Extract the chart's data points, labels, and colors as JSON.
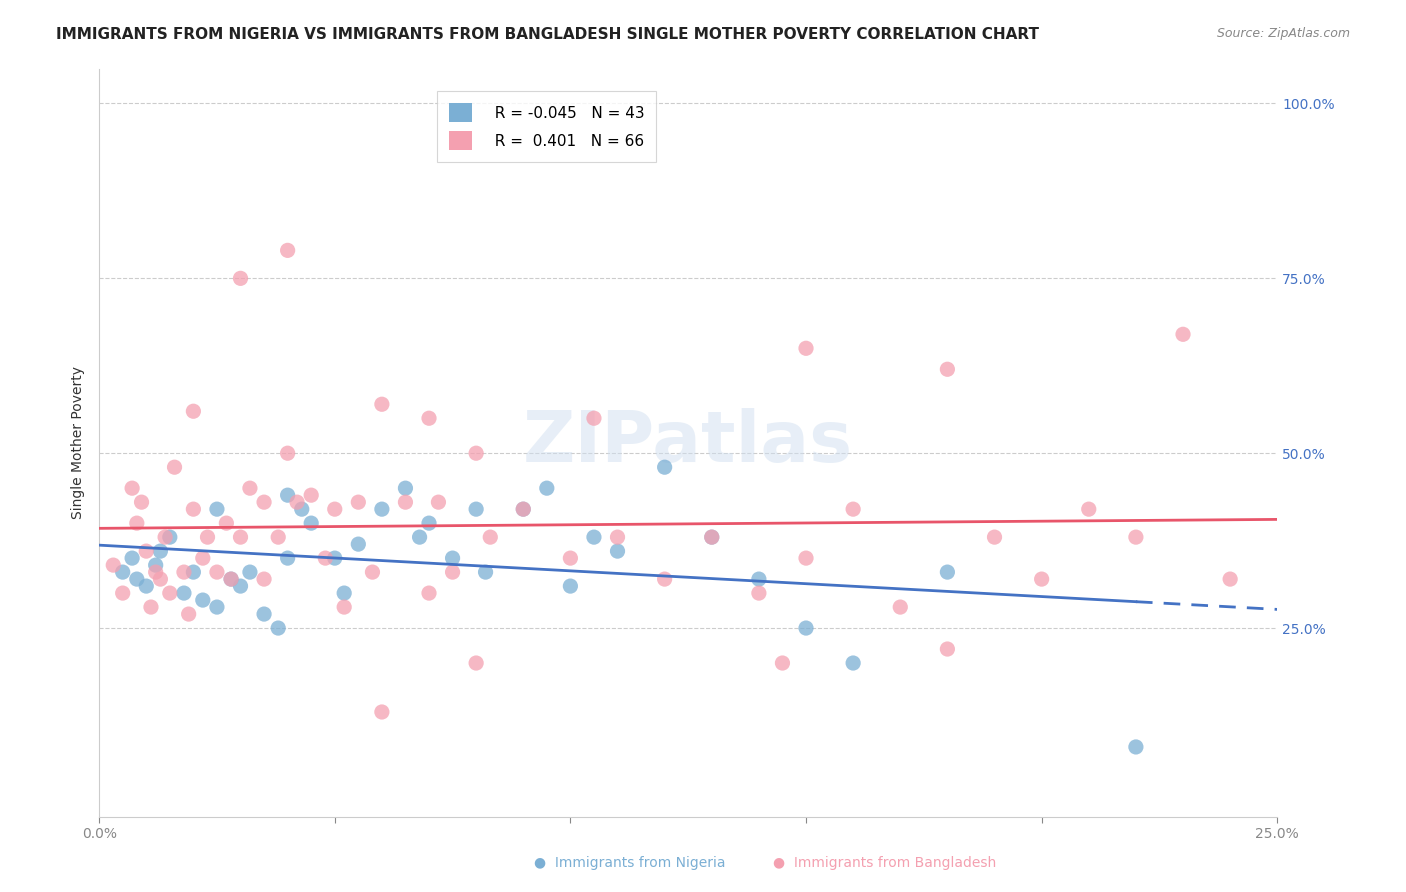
{
  "title": "IMMIGRANTS FROM NIGERIA VS IMMIGRANTS FROM BANGLADESH SINGLE MOTHER POVERTY CORRELATION CHART",
  "source": "Source: ZipAtlas.com",
  "ylabel": "Single Mother Poverty",
  "right_yticks": [
    "100.0%",
    "75.0%",
    "50.0%",
    "25.0%"
  ],
  "right_ytick_values": [
    1.0,
    0.75,
    0.5,
    0.25
  ],
  "xlim": [
    0.0,
    0.25
  ],
  "ylim": [
    -0.02,
    1.05
  ],
  "nigeria_R": -0.045,
  "nigeria_N": 43,
  "bangladesh_R": 0.401,
  "bangladesh_N": 66,
  "nigeria_color": "#7bafd4",
  "bangladesh_color": "#f4a0b0",
  "nigeria_line_color": "#4472c4",
  "bangladesh_line_color": "#e8556a",
  "nigeria_scatter_x": [
    0.005,
    0.007,
    0.008,
    0.01,
    0.012,
    0.013,
    0.015,
    0.018,
    0.02,
    0.022,
    0.025,
    0.025,
    0.028,
    0.03,
    0.032,
    0.035,
    0.038,
    0.04,
    0.04,
    0.043,
    0.045,
    0.05,
    0.052,
    0.055,
    0.06,
    0.065,
    0.068,
    0.07,
    0.075,
    0.08,
    0.082,
    0.09,
    0.095,
    0.1,
    0.105,
    0.11,
    0.12,
    0.13,
    0.14,
    0.15,
    0.16,
    0.18,
    0.22
  ],
  "nigeria_scatter_y": [
    0.33,
    0.35,
    0.32,
    0.31,
    0.34,
    0.36,
    0.38,
    0.3,
    0.33,
    0.29,
    0.42,
    0.28,
    0.32,
    0.31,
    0.33,
    0.27,
    0.25,
    0.44,
    0.35,
    0.42,
    0.4,
    0.35,
    0.3,
    0.37,
    0.42,
    0.45,
    0.38,
    0.4,
    0.35,
    0.42,
    0.33,
    0.42,
    0.45,
    0.31,
    0.38,
    0.36,
    0.48,
    0.38,
    0.32,
    0.25,
    0.2,
    0.33,
    0.08
  ],
  "bangladesh_scatter_x": [
    0.003,
    0.005,
    0.007,
    0.008,
    0.009,
    0.01,
    0.011,
    0.012,
    0.013,
    0.014,
    0.015,
    0.016,
    0.018,
    0.019,
    0.02,
    0.02,
    0.022,
    0.023,
    0.025,
    0.027,
    0.028,
    0.03,
    0.032,
    0.035,
    0.035,
    0.038,
    0.04,
    0.042,
    0.045,
    0.048,
    0.05,
    0.052,
    0.055,
    0.058,
    0.06,
    0.065,
    0.07,
    0.072,
    0.075,
    0.08,
    0.083,
    0.09,
    0.1,
    0.105,
    0.11,
    0.12,
    0.13,
    0.14,
    0.145,
    0.15,
    0.16,
    0.17,
    0.18,
    0.19,
    0.2,
    0.21,
    0.22,
    0.24,
    0.15,
    0.23,
    0.18,
    0.08,
    0.06,
    0.03,
    0.04,
    0.07
  ],
  "bangladesh_scatter_y": [
    0.34,
    0.3,
    0.45,
    0.4,
    0.43,
    0.36,
    0.28,
    0.33,
    0.32,
    0.38,
    0.3,
    0.48,
    0.33,
    0.27,
    0.56,
    0.42,
    0.35,
    0.38,
    0.33,
    0.4,
    0.32,
    0.38,
    0.45,
    0.32,
    0.43,
    0.38,
    0.5,
    0.43,
    0.44,
    0.35,
    0.42,
    0.28,
    0.43,
    0.33,
    0.57,
    0.43,
    0.3,
    0.43,
    0.33,
    0.5,
    0.38,
    0.42,
    0.35,
    0.55,
    0.38,
    0.32,
    0.38,
    0.3,
    0.2,
    0.35,
    0.42,
    0.28,
    0.22,
    0.38,
    0.32,
    0.42,
    0.38,
    0.32,
    0.65,
    0.67,
    0.62,
    0.2,
    0.13,
    0.75,
    0.79,
    0.55
  ],
  "background_color": "#ffffff",
  "grid_color": "#cccccc",
  "title_fontsize": 11,
  "axis_label_fontsize": 10,
  "tick_fontsize": 10,
  "right_tick_color": "#4472c4",
  "bottom_tick_color": "#666666"
}
